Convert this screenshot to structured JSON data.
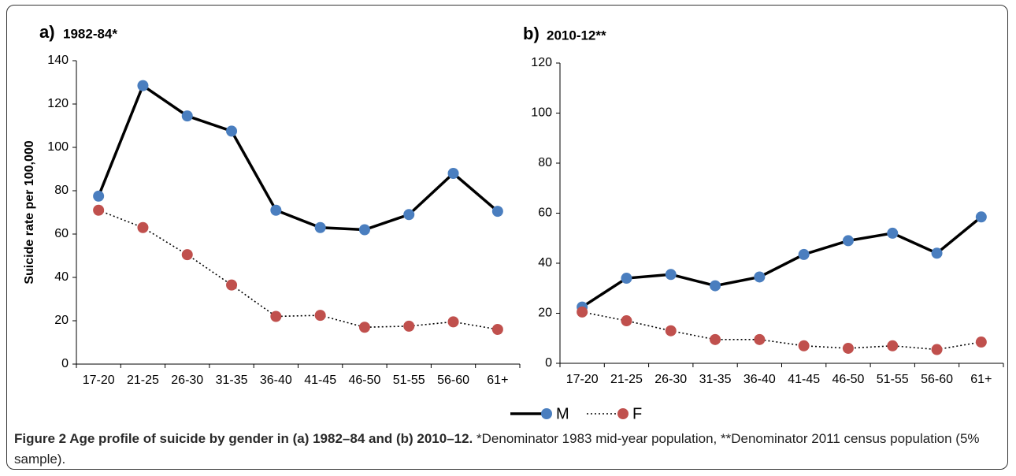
{
  "chart_data": [
    {
      "type": "line",
      "panel": "a)",
      "title": "1982-84*",
      "y_label": "Suicide rate per 100,000",
      "categories": [
        "17-20",
        "21-25",
        "26-30",
        "31-35",
        "36-40",
        "41-45",
        "46-50",
        "51-55",
        "56-60",
        "61+"
      ],
      "ylim": [
        0,
        140
      ],
      "yticks": [
        0,
        20,
        40,
        60,
        80,
        100,
        120,
        140
      ],
      "series": [
        {
          "name": "M",
          "color": "#4a7ebf",
          "line_color": "#000000",
          "line_style": "solid",
          "values": [
            77.5,
            128.5,
            114.5,
            107.5,
            71,
            63,
            62,
            69,
            88,
            70.5
          ]
        },
        {
          "name": "F",
          "color": "#c0504d",
          "line_color": "#000000",
          "line_style": "dotted",
          "values": [
            71,
            63,
            50.5,
            36.5,
            22,
            22.5,
            17,
            17.5,
            19.5,
            16
          ]
        }
      ]
    },
    {
      "type": "line",
      "panel": "b)",
      "title": "2010-12**",
      "categories": [
        "17-20",
        "21-25",
        "26-30",
        "31-35",
        "36-40",
        "41-45",
        "46-50",
        "51-55",
        "56-60",
        "61+"
      ],
      "ylim": [
        0,
        120
      ],
      "yticks": [
        0,
        20,
        40,
        60,
        80,
        100,
        120
      ],
      "series": [
        {
          "color": "#4a7ebf",
          "line_color": "#000000",
          "line_style": "solid",
          "values": [
            22.5,
            34,
            35.5,
            31,
            34.5,
            43.5,
            49,
            52,
            44,
            58.5
          ]
        },
        {
          "color": "#c0504d",
          "line_color": "#000000",
          "line_style": "dotted",
          "values": [
            20.5,
            17,
            13,
            9.5,
            9.5,
            7,
            6,
            7,
            5.5,
            8.5
          ]
        }
      ]
    }
  ],
  "caption": {
    "bold": "Figure 2 Age profile of suicide by gender in (a) 1982–84 and (b) 2010–12.",
    "text": "*Denominator 1983 mid-year population, **Denominator 2011 census population (5% sample)."
  }
}
